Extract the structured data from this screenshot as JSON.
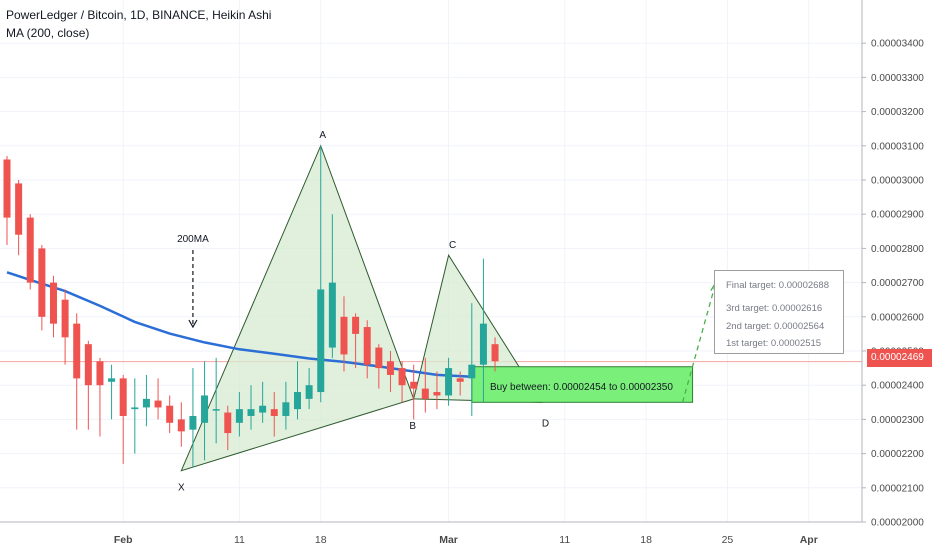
{
  "header": {
    "title": "PowerLedger / Bitcoin, 1D, BINANCE, Heikin Ashi",
    "ma_label": "MA (200, close)"
  },
  "last_price": "0.00002469",
  "annotations": {
    "ma_callout": "200MA",
    "point_x": "X",
    "point_a": "A",
    "point_b": "B",
    "point_c": "C",
    "point_d": "D",
    "buy_zone": "Buy between: 0.00002454 to 0.00002350"
  },
  "targets": {
    "final": "Final target: 0.00002688",
    "third": "3rd target: 0.00002616",
    "second": "2nd target: 0.00002564",
    "first": "1st target: 0.00002515"
  },
  "colors": {
    "bull": "#26a69a",
    "bear": "#ef5350",
    "ma": "#2a6ed6",
    "pattern_fill": "#d6ebd0",
    "pattern_stroke": "#2f5a2f",
    "buy_zone": "#7af07a",
    "target_line": "#4caf50"
  },
  "chart_data": {
    "type": "candlestick",
    "title": "PowerLedger / Bitcoin, 1D, BINANCE, Heikin Ashi",
    "y_ticks": [
      "0.00002000",
      "0.00002100",
      "0.00002200",
      "0.00002300",
      "0.00002400",
      "0.00002500",
      "0.00002600",
      "0.00002700",
      "0.00002800",
      "0.00002900",
      "0.00003000",
      "0.00003100",
      "0.00003200",
      "0.00003300",
      "0.00003400"
    ],
    "x_ticks": [
      "Feb",
      "11",
      "18",
      "Mar",
      "11",
      "18",
      "25",
      "Apr"
    ],
    "ylim": [
      2e-05,
      3.45e-05
    ],
    "grid": true,
    "ma_series": {
      "name": "MA (200, close)",
      "points": [
        [
          "2019-01-22",
          2.73e-05
        ],
        [
          "2019-01-24",
          2.708e-05
        ],
        [
          "2019-01-27",
          2.675e-05
        ],
        [
          "2019-01-30",
          2.632e-05
        ],
        [
          "2019-02-02",
          2.585e-05
        ],
        [
          "2019-02-05",
          2.551e-05
        ],
        [
          "2019-02-08",
          2.525e-05
        ],
        [
          "2019-02-11",
          2.505e-05
        ],
        [
          "2019-02-14",
          2.492e-05
        ],
        [
          "2019-02-17",
          2.478e-05
        ],
        [
          "2019-02-20",
          2.468e-05
        ],
        [
          "2019-02-23",
          2.455e-05
        ],
        [
          "2019-02-26",
          2.44e-05
        ],
        [
          "2019-02-28",
          2.43e-05
        ],
        [
          "2019-03-03",
          2.425e-05
        ]
      ]
    },
    "candles": [
      {
        "d": "2019-01-22",
        "o": 3.06e-05,
        "c": 2.89e-05,
        "h": 3.07e-05,
        "l": 2.81e-05
      },
      {
        "d": "2019-01-23",
        "o": 2.99e-05,
        "c": 2.84e-05,
        "h": 3e-05,
        "l": 2.78e-05
      },
      {
        "d": "2019-01-24",
        "o": 2.89e-05,
        "c": 2.7e-05,
        "h": 2.9e-05,
        "l": 2.68e-05
      },
      {
        "d": "2019-01-25",
        "o": 2.8e-05,
        "c": 2.6e-05,
        "h": 2.81e-05,
        "l": 2.56e-05
      },
      {
        "d": "2019-01-26",
        "o": 2.7e-05,
        "c": 2.58e-05,
        "h": 2.72e-05,
        "l": 2.54e-05
      },
      {
        "d": "2019-01-27",
        "o": 2.65e-05,
        "c": 2.54e-05,
        "h": 2.68e-05,
        "l": 2.46e-05
      },
      {
        "d": "2019-01-28",
        "o": 2.58e-05,
        "c": 2.42e-05,
        "h": 2.61e-05,
        "l": 2.27e-05
      },
      {
        "d": "2019-01-29",
        "o": 2.52e-05,
        "c": 2.4e-05,
        "h": 2.53e-05,
        "l": 2.27e-05
      },
      {
        "d": "2019-01-30",
        "o": 2.47e-05,
        "c": 2.4e-05,
        "h": 2.48e-05,
        "l": 2.25e-05
      },
      {
        "d": "2019-01-31",
        "o": 2.41e-05,
        "c": 2.42e-05,
        "h": 2.46e-05,
        "l": 2.3e-05
      },
      {
        "d": "2019-02-01",
        "o": 2.42e-05,
        "c": 2.31e-05,
        "h": 2.43e-05,
        "l": 2.17e-05
      },
      {
        "d": "2019-02-02",
        "o": 2.33e-05,
        "c": 2.335e-05,
        "h": 2.42e-05,
        "l": 2.2e-05
      },
      {
        "d": "2019-02-03",
        "o": 2.335e-05,
        "c": 2.36e-05,
        "h": 2.43e-05,
        "l": 2.28e-05
      },
      {
        "d": "2019-02-04",
        "o": 2.355e-05,
        "c": 2.335e-05,
        "h": 2.42e-05,
        "l": 2.3e-05
      },
      {
        "d": "2019-02-05",
        "o": 2.34e-05,
        "c": 2.29e-05,
        "h": 2.37e-05,
        "l": 2.26e-05
      },
      {
        "d": "2019-02-06",
        "o": 2.3e-05,
        "c": 2.265e-05,
        "h": 2.35e-05,
        "l": 2.22e-05
      },
      {
        "d": "2019-02-07",
        "o": 2.27e-05,
        "c": 2.31e-05,
        "h": 2.45e-05,
        "l": 2.16e-05
      },
      {
        "d": "2019-02-08",
        "o": 2.29e-05,
        "c": 2.37e-05,
        "h": 2.47e-05,
        "l": 2.18e-05
      },
      {
        "d": "2019-02-09",
        "o": 2.33e-05,
        "c": 2.33e-05,
        "h": 2.48e-05,
        "l": 2.23e-05
      },
      {
        "d": "2019-02-10",
        "o": 2.32e-05,
        "c": 2.26e-05,
        "h": 2.34e-05,
        "l": 2.21e-05
      },
      {
        "d": "2019-02-11",
        "o": 2.29e-05,
        "c": 2.33e-05,
        "h": 2.38e-05,
        "l": 2.25e-05
      },
      {
        "d": "2019-02-12",
        "o": 2.31e-05,
        "c": 2.33e-05,
        "h": 2.4e-05,
        "l": 2.27e-05
      },
      {
        "d": "2019-02-13",
        "o": 2.32e-05,
        "c": 2.34e-05,
        "h": 2.41e-05,
        "l": 2.29e-05
      },
      {
        "d": "2019-02-14",
        "o": 2.33e-05,
        "c": 2.31e-05,
        "h": 2.38e-05,
        "l": 2.25e-05
      },
      {
        "d": "2019-02-15",
        "o": 2.31e-05,
        "c": 2.35e-05,
        "h": 2.41e-05,
        "l": 2.27e-05
      },
      {
        "d": "2019-02-16",
        "o": 2.33e-05,
        "c": 2.38e-05,
        "h": 2.47e-05,
        "l": 2.3e-05
      },
      {
        "d": "2019-02-17",
        "o": 2.36e-05,
        "c": 2.4e-05,
        "h": 2.45e-05,
        "l": 2.33e-05
      },
      {
        "d": "2019-02-18",
        "o": 2.38e-05,
        "c": 2.68e-05,
        "h": 3.1e-05,
        "l": 2.35e-05
      },
      {
        "d": "2019-02-19",
        "o": 2.51e-05,
        "c": 2.7e-05,
        "h": 2.9e-05,
        "l": 2.48e-05
      },
      {
        "d": "2019-02-20",
        "o": 2.6e-05,
        "c": 2.49e-05,
        "h": 2.66e-05,
        "l": 2.44e-05
      },
      {
        "d": "2019-02-21",
        "o": 2.6e-05,
        "c": 2.55e-05,
        "h": 2.61e-05,
        "l": 2.45e-05
      },
      {
        "d": "2019-02-22",
        "o": 2.57e-05,
        "c": 2.46e-05,
        "h": 2.59e-05,
        "l": 2.42e-05
      },
      {
        "d": "2019-02-23",
        "o": 2.51e-05,
        "c": 2.45e-05,
        "h": 2.52e-05,
        "l": 2.39e-05
      },
      {
        "d": "2019-02-24",
        "o": 2.47e-05,
        "c": 2.43e-05,
        "h": 2.5e-05,
        "l": 2.38e-05
      },
      {
        "d": "2019-02-25",
        "o": 2.45e-05,
        "c": 2.4e-05,
        "h": 2.47e-05,
        "l": 2.35e-05
      },
      {
        "d": "2019-02-26",
        "o": 2.41e-05,
        "c": 2.39e-05,
        "h": 2.46e-05,
        "l": 2.3e-05
      },
      {
        "d": "2019-02-27",
        "o": 2.39e-05,
        "c": 2.36e-05,
        "h": 2.48e-05,
        "l": 2.32e-05
      },
      {
        "d": "2019-02-28",
        "o": 2.38e-05,
        "c": 2.37e-05,
        "h": 2.44e-05,
        "l": 2.33e-05
      },
      {
        "d": "2019-03-01",
        "o": 2.37e-05,
        "c": 2.45e-05,
        "h": 2.48e-05,
        "l": 2.34e-05
      },
      {
        "d": "2019-03-02",
        "o": 2.42e-05,
        "c": 2.41e-05,
        "h": 2.44e-05,
        "l": 2.37e-05
      },
      {
        "d": "2019-03-03",
        "o": 2.42e-05,
        "c": 2.46e-05,
        "h": 2.64e-05,
        "l": 2.31e-05
      },
      {
        "d": "2019-03-04",
        "o": 2.46e-05,
        "c": 2.58e-05,
        "h": 2.77e-05,
        "l": 2.35e-05
      },
      {
        "d": "2019-03-05",
        "o": 2.52e-05,
        "c": 2.47e-05,
        "h": 2.54e-05,
        "l": 2.44e-05
      }
    ]
  }
}
